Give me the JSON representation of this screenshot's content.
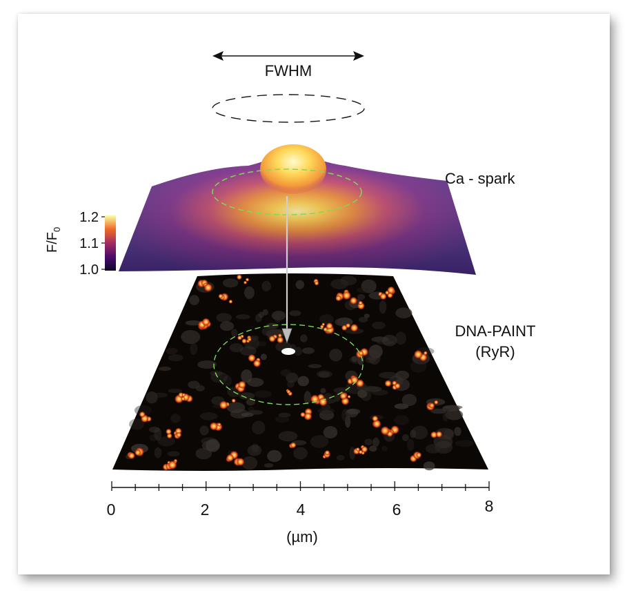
{
  "fwhm_label": "FWHM",
  "ca_label": "Ca - spark",
  "paint_label_line1": "DNA-PAINT",
  "paint_label_line2": "(RyR)",
  "colorbar": {
    "title": "F/F",
    "title_sub": "0",
    "ticks": [
      "1.2",
      "1.1",
      "1.0"
    ],
    "colormap": "inferno",
    "range": [
      1.0,
      1.2
    ]
  },
  "axis": {
    "ticks": [
      "0",
      "2",
      "4",
      "6",
      "8"
    ],
    "unit_label": "(µm)",
    "range": [
      0,
      8
    ]
  },
  "colors": {
    "ring": "#7ed957",
    "paint_bg": "#0b0705",
    "paint_hot": "#ffb347",
    "spark_low": "#3b1f7a",
    "spark_high": "#fff3a6"
  }
}
